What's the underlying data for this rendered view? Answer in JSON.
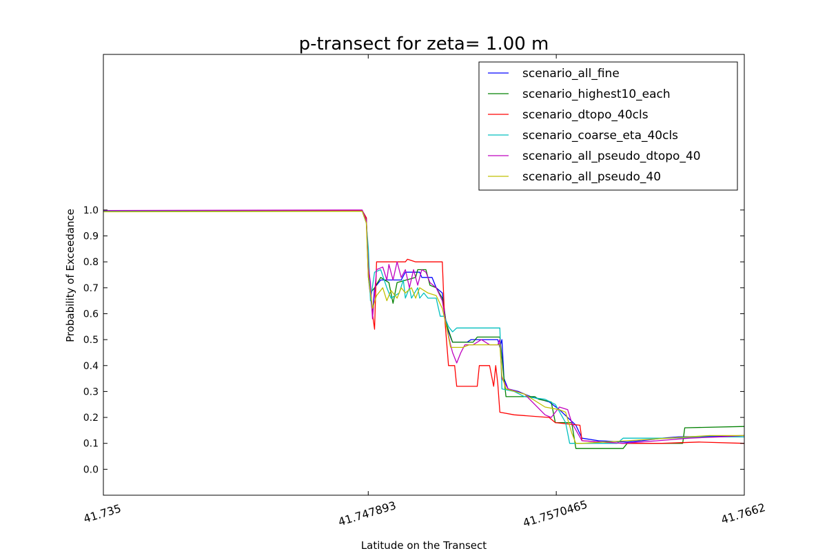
{
  "chart_data": {
    "type": "line",
    "title": "p-transect for zeta= 1.00 m",
    "xlabel": "Latitude on the Transect",
    "ylabel": "Probability of Exceedance",
    "xlim": [
      41.735,
      41.7662
    ],
    "ylim": [
      -0.1,
      1.6
    ],
    "xtick_values": [
      41.735,
      41.747893,
      41.7570465,
      41.7662
    ],
    "xtick_labels": [
      "41.735",
      "41.747893",
      "41.7570465",
      "41.7662"
    ],
    "ytick_values": [
      0.0,
      0.1,
      0.2,
      0.3,
      0.4,
      0.5,
      0.6,
      0.7,
      0.8,
      0.9,
      1.0
    ],
    "ytick_labels": [
      "0.0",
      "0.1",
      "0.2",
      "0.3",
      "0.4",
      "0.5",
      "0.6",
      "0.7",
      "0.8",
      "0.9",
      "1.0"
    ],
    "grid": false,
    "legend_position": "top-right",
    "series": [
      {
        "name": "scenario_all_fine",
        "color": "#0000ff",
        "points": [
          [
            41.735,
            0.997
          ],
          [
            41.7476,
            0.997
          ],
          [
            41.7478,
            0.97
          ],
          [
            41.7479,
            0.74
          ],
          [
            41.7481,
            0.6
          ],
          [
            41.7482,
            0.7
          ],
          [
            41.7485,
            0.73
          ],
          [
            41.7495,
            0.73
          ],
          [
            41.7497,
            0.76
          ],
          [
            41.7504,
            0.76
          ],
          [
            41.7505,
            0.74
          ],
          [
            41.751,
            0.74
          ],
          [
            41.7512,
            0.7
          ],
          [
            41.7515,
            0.68
          ],
          [
            41.7517,
            0.55
          ],
          [
            41.752,
            0.49
          ],
          [
            41.7527,
            0.49
          ],
          [
            41.7529,
            0.5
          ],
          [
            41.7542,
            0.5
          ],
          [
            41.7543,
            0.47
          ],
          [
            41.7544,
            0.5
          ],
          [
            41.7545,
            0.35
          ],
          [
            41.7547,
            0.31
          ],
          [
            41.7552,
            0.3
          ],
          [
            41.7558,
            0.28
          ],
          [
            41.7567,
            0.26
          ],
          [
            41.7572,
            0.23
          ],
          [
            41.758,
            0.17
          ],
          [
            41.7583,
            0.12
          ],
          [
            41.7591,
            0.11
          ],
          [
            41.7605,
            0.105
          ],
          [
            41.7612,
            0.11
          ],
          [
            41.7622,
            0.12
          ],
          [
            41.763,
            0.125
          ],
          [
            41.7662,
            0.13
          ]
        ]
      },
      {
        "name": "scenario_highest10_each",
        "color": "#008000",
        "points": [
          [
            41.735,
            0.998
          ],
          [
            41.7476,
            0.998
          ],
          [
            41.7478,
            0.97
          ],
          [
            41.7479,
            0.79
          ],
          [
            41.748,
            0.68
          ],
          [
            41.7482,
            0.7
          ],
          [
            41.7485,
            0.74
          ],
          [
            41.7489,
            0.72
          ],
          [
            41.7491,
            0.64
          ],
          [
            41.7493,
            0.72
          ],
          [
            41.7502,
            0.74
          ],
          [
            41.7503,
            0.77
          ],
          [
            41.7507,
            0.77
          ],
          [
            41.7509,
            0.71
          ],
          [
            41.7512,
            0.7
          ],
          [
            41.7515,
            0.66
          ],
          [
            41.7517,
            0.56
          ],
          [
            41.752,
            0.49
          ],
          [
            41.753,
            0.49
          ],
          [
            41.7532,
            0.51
          ],
          [
            41.7543,
            0.51
          ],
          [
            41.7545,
            0.35
          ],
          [
            41.7546,
            0.28
          ],
          [
            41.756,
            0.28
          ],
          [
            41.7562,
            0.27
          ],
          [
            41.7568,
            0.26
          ],
          [
            41.757,
            0.18
          ],
          [
            41.7578,
            0.18
          ],
          [
            41.758,
            0.08
          ],
          [
            41.7603,
            0.08
          ],
          [
            41.7605,
            0.1
          ],
          [
            41.7632,
            0.1
          ],
          [
            41.7633,
            0.16
          ],
          [
            41.7662,
            0.165
          ]
        ]
      },
      {
        "name": "scenario_dtopo_40cls",
        "color": "#ff0000",
        "points": [
          [
            41.735,
            0.997
          ],
          [
            41.7476,
            0.997
          ],
          [
            41.7478,
            0.97
          ],
          [
            41.7479,
            0.75
          ],
          [
            41.748,
            0.7
          ],
          [
            41.7481,
            0.6
          ],
          [
            41.7482,
            0.54
          ],
          [
            41.7483,
            0.8
          ],
          [
            41.7497,
            0.8
          ],
          [
            41.7498,
            0.81
          ],
          [
            41.7502,
            0.8
          ],
          [
            41.7515,
            0.8
          ],
          [
            41.7516,
            0.6
          ],
          [
            41.7518,
            0.4
          ],
          [
            41.7521,
            0.4
          ],
          [
            41.7522,
            0.32
          ],
          [
            41.7532,
            0.32
          ],
          [
            41.7533,
            0.4
          ],
          [
            41.7538,
            0.4
          ],
          [
            41.754,
            0.32
          ],
          [
            41.7541,
            0.4
          ],
          [
            41.7542,
            0.33
          ],
          [
            41.7543,
            0.22
          ],
          [
            41.755,
            0.21
          ],
          [
            41.7567,
            0.2
          ],
          [
            41.757,
            0.18
          ],
          [
            41.7582,
            0.17
          ],
          [
            41.7583,
            0.11
          ],
          [
            41.7603,
            0.1
          ],
          [
            41.7622,
            0.1
          ],
          [
            41.764,
            0.105
          ],
          [
            41.7662,
            0.1
          ]
        ]
      },
      {
        "name": "scenario_coarse_eta_40cls",
        "color": "#00bfbf",
        "points": [
          [
            41.735,
            0.995
          ],
          [
            41.7476,
            0.995
          ],
          [
            41.7478,
            0.95
          ],
          [
            41.7479,
            0.85
          ],
          [
            41.748,
            0.65
          ],
          [
            41.7482,
            0.76
          ],
          [
            41.7485,
            0.77
          ],
          [
            41.7488,
            0.7
          ],
          [
            41.749,
            0.66
          ],
          [
            41.7494,
            0.68
          ],
          [
            41.7496,
            0.73
          ],
          [
            41.7497,
            0.66
          ],
          [
            41.7499,
            0.7
          ],
          [
            41.75,
            0.66
          ],
          [
            41.7503,
            0.7
          ],
          [
            41.7504,
            0.66
          ],
          [
            41.7506,
            0.68
          ],
          [
            41.7508,
            0.66
          ],
          [
            41.7512,
            0.66
          ],
          [
            41.7514,
            0.59
          ],
          [
            41.7516,
            0.59
          ],
          [
            41.7518,
            0.55
          ],
          [
            41.752,
            0.53
          ],
          [
            41.7522,
            0.545
          ],
          [
            41.7543,
            0.545
          ],
          [
            41.7544,
            0.31
          ],
          [
            41.755,
            0.3
          ],
          [
            41.7555,
            0.28
          ],
          [
            41.7565,
            0.27
          ],
          [
            41.757,
            0.25
          ],
          [
            41.7575,
            0.18
          ],
          [
            41.7577,
            0.1
          ],
          [
            41.7591,
            0.1
          ],
          [
            41.76,
            0.1
          ],
          [
            41.7603,
            0.12
          ],
          [
            41.7625,
            0.12
          ],
          [
            41.7645,
            0.125
          ],
          [
            41.7662,
            0.125
          ]
        ]
      },
      {
        "name": "scenario_all_pseudo_dtopo_40",
        "color": "#bf00bf",
        "points": [
          [
            41.735,
            0.998
          ],
          [
            41.7476,
            1.0
          ],
          [
            41.7478,
            0.96
          ],
          [
            41.7479,
            0.78
          ],
          [
            41.748,
            0.72
          ],
          [
            41.7481,
            0.58
          ],
          [
            41.7483,
            0.77
          ],
          [
            41.7486,
            0.78
          ],
          [
            41.7488,
            0.73
          ],
          [
            41.7489,
            0.79
          ],
          [
            41.7491,
            0.73
          ],
          [
            41.7493,
            0.8
          ],
          [
            41.7495,
            0.74
          ],
          [
            41.7497,
            0.77
          ],
          [
            41.7499,
            0.7
          ],
          [
            41.7501,
            0.77
          ],
          [
            41.7503,
            0.71
          ],
          [
            41.7505,
            0.77
          ],
          [
            41.7507,
            0.76
          ],
          [
            41.7509,
            0.72
          ],
          [
            41.7512,
            0.7
          ],
          [
            41.7515,
            0.65
          ],
          [
            41.7517,
            0.55
          ],
          [
            41.7519,
            0.48
          ],
          [
            41.752,
            0.45
          ],
          [
            41.7522,
            0.41
          ],
          [
            41.7524,
            0.45
          ],
          [
            41.7526,
            0.48
          ],
          [
            41.753,
            0.48
          ],
          [
            41.7534,
            0.5
          ],
          [
            41.7538,
            0.48
          ],
          [
            41.7542,
            0.48
          ],
          [
            41.7543,
            0.5
          ],
          [
            41.7544,
            0.35
          ],
          [
            41.7547,
            0.31
          ],
          [
            41.7555,
            0.29
          ],
          [
            41.7565,
            0.21
          ],
          [
            41.7568,
            0.2
          ],
          [
            41.7572,
            0.24
          ],
          [
            41.7576,
            0.23
          ],
          [
            41.7578,
            0.18
          ],
          [
            41.7583,
            0.11
          ],
          [
            41.7603,
            0.1
          ],
          [
            41.762,
            0.11
          ],
          [
            41.7635,
            0.12
          ],
          [
            41.765,
            0.125
          ],
          [
            41.7662,
            0.13
          ]
        ]
      },
      {
        "name": "scenario_all_pseudo_40",
        "color": "#bfbf00",
        "points": [
          [
            41.735,
            0.993
          ],
          [
            41.7476,
            0.995
          ],
          [
            41.7478,
            0.95
          ],
          [
            41.7479,
            0.74
          ],
          [
            41.7481,
            0.62
          ],
          [
            41.7483,
            0.67
          ],
          [
            41.7486,
            0.7
          ],
          [
            41.7488,
            0.65
          ],
          [
            41.749,
            0.69
          ],
          [
            41.7493,
            0.66
          ],
          [
            41.7495,
            0.7
          ],
          [
            41.7497,
            0.68
          ],
          [
            41.75,
            0.7
          ],
          [
            41.7502,
            0.66
          ],
          [
            41.7504,
            0.7
          ],
          [
            41.7508,
            0.68
          ],
          [
            41.7512,
            0.67
          ],
          [
            41.7515,
            0.62
          ],
          [
            41.7517,
            0.55
          ],
          [
            41.7519,
            0.47
          ],
          [
            41.7525,
            0.47
          ],
          [
            41.7528,
            0.48
          ],
          [
            41.7543,
            0.48
          ],
          [
            41.7544,
            0.36
          ],
          [
            41.7546,
            0.31
          ],
          [
            41.7555,
            0.29
          ],
          [
            41.7565,
            0.24
          ],
          [
            41.7572,
            0.23
          ],
          [
            41.7575,
            0.22
          ],
          [
            41.7578,
            0.14
          ],
          [
            41.758,
            0.1
          ],
          [
            41.7583,
            0.1
          ],
          [
            41.7605,
            0.11
          ],
          [
            41.7625,
            0.12
          ],
          [
            41.7645,
            0.13
          ],
          [
            41.7662,
            0.13
          ]
        ]
      }
    ]
  }
}
